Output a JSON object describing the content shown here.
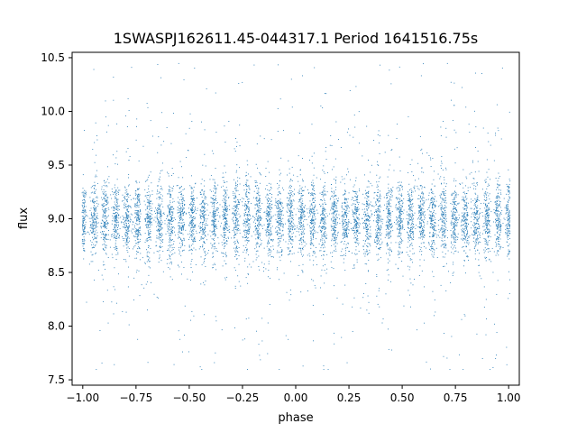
{
  "chart_data": {
    "type": "scatter",
    "title": "1SWASPJ162611.45-044317.1 Period 1641516.75s",
    "xlabel": "phase",
    "ylabel": "flux",
    "xlim": [
      -1.05,
      1.05
    ],
    "ylim": [
      7.45,
      10.55
    ],
    "x_ticks": [
      "−1.00",
      "−0.75",
      "−0.50",
      "−0.25",
      "0.00",
      "0.25",
      "0.50",
      "0.75",
      "1.00"
    ],
    "x_tick_values": [
      -1.0,
      -0.75,
      -0.5,
      -0.25,
      0.0,
      0.25,
      0.5,
      0.75,
      1.0
    ],
    "y_ticks": [
      "7.5",
      "8.0",
      "8.5",
      "9.0",
      "9.5",
      "10.0",
      "10.5"
    ],
    "y_tick_values": [
      7.5,
      8.0,
      8.5,
      9.0,
      9.5,
      10.0,
      10.5
    ],
    "grid": false,
    "series": [
      {
        "color": "#1f77b4",
        "phase_range": [
          -1.0,
          1.0
        ],
        "flux_core_range": [
          8.6,
          9.4
        ],
        "flux_median": 9.0,
        "flux_range": [
          7.6,
          10.45
        ],
        "cluster_count": 40,
        "cluster_spacing": 0.05
      }
    ]
  }
}
